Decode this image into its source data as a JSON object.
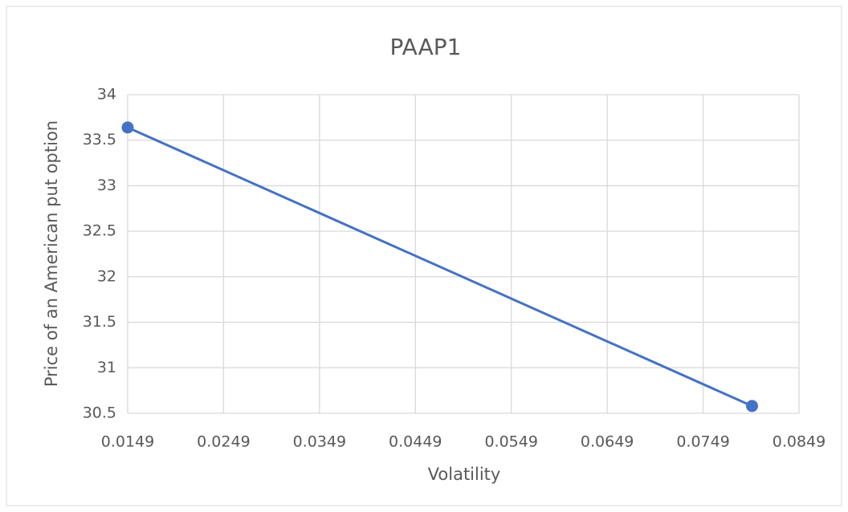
{
  "chart_data": {
    "type": "scatter",
    "title": "PAAP1",
    "x_label": "Volatility",
    "y_label": "Price of an American put option",
    "x": [
      0.0149,
      0.08
    ],
    "values": [
      33.64,
      30.58
    ],
    "color": "#4472c4",
    "xlim": [
      0.0149,
      0.0849
    ],
    "xticks": [
      0.0149,
      0.0249,
      0.0349,
      0.0449,
      0.0549,
      0.0649,
      0.0749,
      0.0849
    ],
    "ylim": [
      30.5,
      34
    ],
    "yticks": [
      30.5,
      31,
      31.5,
      32,
      32.5,
      33,
      33.5,
      34
    ],
    "grid": true,
    "lines": true,
    "markers": true
  }
}
